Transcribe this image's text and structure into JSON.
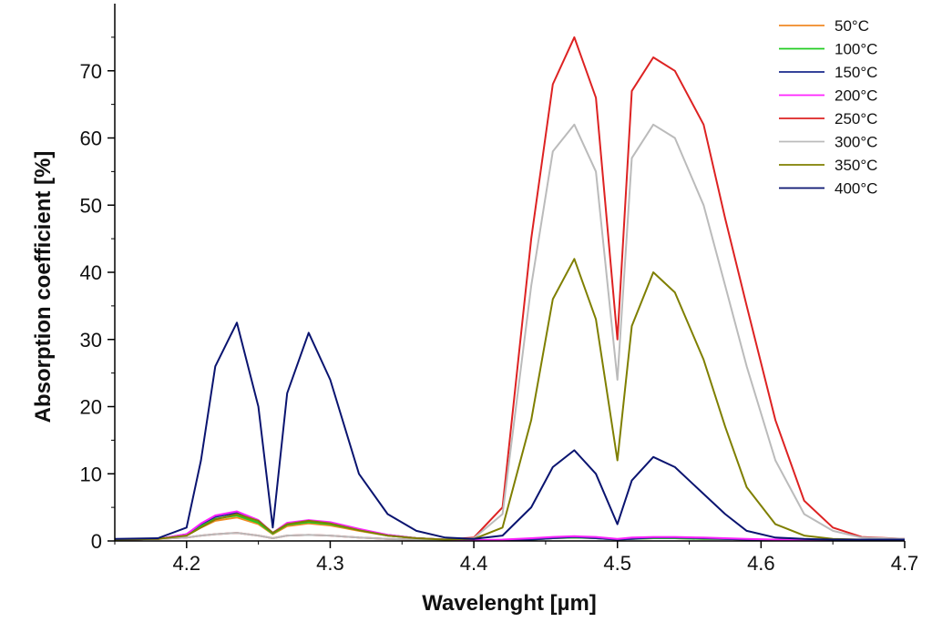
{
  "chart_data": {
    "type": "line",
    "title": "",
    "xlabel": "Wavelenght [µm]",
    "ylabel": "Absorption coefficient [%]",
    "xlim": [
      4.15,
      4.7
    ],
    "ylim": [
      0,
      80
    ],
    "xticks": [
      "4.2",
      "4.3",
      "4.4",
      "4.5",
      "4.6",
      "4.7"
    ],
    "yticks": [
      "0",
      "10",
      "20",
      "30",
      "40",
      "50",
      "60",
      "70"
    ],
    "grid": false,
    "legend_position": "top-right",
    "x": [
      4.15,
      4.18,
      4.2,
      4.21,
      4.22,
      4.235,
      4.25,
      4.26,
      4.27,
      4.285,
      4.3,
      4.32,
      4.34,
      4.36,
      4.38,
      4.4,
      4.42,
      4.44,
      4.455,
      4.47,
      4.485,
      4.5,
      4.51,
      4.525,
      4.54,
      4.56,
      4.575,
      4.59,
      4.61,
      4.63,
      4.65,
      4.67,
      4.7
    ],
    "series": [
      {
        "name": "50°C",
        "color": "#f08a24",
        "values": [
          0.2,
          0.3,
          0.8,
          2.0,
          3.0,
          3.5,
          2.5,
          1.0,
          2.2,
          2.6,
          2.3,
          1.5,
          0.8,
          0.4,
          0.2,
          0.1,
          0.1,
          0.2,
          0.4,
          0.5,
          0.4,
          0.2,
          0.3,
          0.4,
          0.4,
          0.3,
          0.3,
          0.2,
          0.2,
          0.1,
          0.1,
          0.1,
          0.1
        ]
      },
      {
        "name": "100°C",
        "color": "#22cc22",
        "values": [
          0.2,
          0.3,
          0.9,
          2.2,
          3.3,
          3.8,
          2.7,
          1.1,
          2.4,
          2.8,
          2.5,
          1.6,
          0.8,
          0.4,
          0.2,
          0.1,
          0.1,
          0.2,
          0.4,
          0.5,
          0.4,
          0.2,
          0.3,
          0.4,
          0.4,
          0.3,
          0.3,
          0.2,
          0.2,
          0.1,
          0.1,
          0.1,
          0.1
        ]
      },
      {
        "name": "150°C",
        "color": "#1a2a8c",
        "values": [
          0.2,
          0.3,
          1.0,
          2.5,
          3.6,
          4.2,
          3.0,
          1.2,
          2.6,
          3.0,
          2.7,
          1.7,
          0.9,
          0.4,
          0.2,
          0.1,
          0.1,
          0.2,
          0.4,
          0.6,
          0.4,
          0.2,
          0.3,
          0.5,
          0.5,
          0.4,
          0.3,
          0.2,
          0.2,
          0.1,
          0.1,
          0.1,
          0.1
        ]
      },
      {
        "name": "200°C",
        "color": "#ff22ff",
        "values": [
          0.2,
          0.3,
          1.0,
          2.6,
          3.8,
          4.4,
          3.1,
          1.2,
          2.7,
          3.1,
          2.8,
          1.8,
          0.9,
          0.4,
          0.2,
          0.1,
          0.2,
          0.4,
          0.6,
          0.7,
          0.6,
          0.3,
          0.5,
          0.6,
          0.6,
          0.5,
          0.4,
          0.3,
          0.2,
          0.1,
          0.1,
          0.1,
          0.1
        ]
      },
      {
        "name": "250°C",
        "color": "#dd2222",
        "values": [
          0.2,
          0.3,
          0.5,
          0.8,
          1.0,
          1.2,
          0.8,
          0.4,
          0.8,
          0.9,
          0.8,
          0.5,
          0.3,
          0.2,
          0.2,
          0.5,
          5.0,
          45.0,
          68.0,
          75.0,
          66.0,
          30.0,
          67.0,
          72.0,
          70.0,
          62.0,
          48.0,
          35.0,
          18.0,
          6.0,
          2.0,
          0.6,
          0.3
        ]
      },
      {
        "name": "300°C",
        "color": "#bbbbbb",
        "values": [
          0.2,
          0.3,
          0.5,
          0.8,
          1.0,
          1.2,
          0.8,
          0.4,
          0.8,
          0.9,
          0.8,
          0.5,
          0.3,
          0.2,
          0.2,
          0.4,
          4.0,
          38.0,
          58.0,
          62.0,
          55.0,
          24.0,
          57.0,
          62.0,
          60.0,
          50.0,
          38.0,
          26.0,
          12.0,
          4.0,
          1.5,
          0.5,
          0.3
        ]
      },
      {
        "name": "350°C",
        "color": "#7f7f00",
        "values": [
          0.2,
          0.3,
          0.8,
          2.0,
          3.2,
          4.0,
          3.0,
          1.2,
          2.5,
          3.0,
          2.6,
          1.6,
          0.8,
          0.4,
          0.2,
          0.3,
          2.0,
          18.0,
          36.0,
          42.0,
          33.0,
          12.0,
          32.0,
          40.0,
          37.0,
          27.0,
          17.0,
          8.0,
          2.5,
          0.8,
          0.3,
          0.2,
          0.2
        ]
      },
      {
        "name": "400°C",
        "color": "#0a1470",
        "values": [
          0.3,
          0.4,
          2.0,
          12.0,
          26.0,
          32.5,
          20.0,
          2.0,
          22.0,
          31.0,
          24.0,
          10.0,
          4.0,
          1.5,
          0.5,
          0.3,
          0.8,
          5.0,
          11.0,
          13.5,
          10.0,
          2.5,
          9.0,
          12.5,
          11.0,
          7.0,
          4.0,
          1.5,
          0.5,
          0.3,
          0.2,
          0.2,
          0.2
        ]
      }
    ]
  }
}
